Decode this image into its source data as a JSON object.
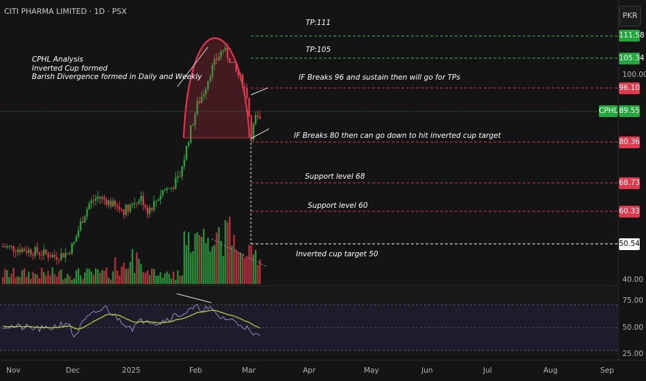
{
  "header": {
    "title": "CITI PHARMA LIMITED · 1D · PSX",
    "currency": "PKR"
  },
  "note": "CPHL Analysis\nInverted Cup formed\nBarish Divergence formed in Daily and Weekly",
  "annotations": {
    "tp111": "TP:111",
    "tp105": "TP:105",
    "breaks96": "IF Breaks 96 and sustain  then will go for TPs",
    "breaks80": "IF Breaks 80 then can go down to hit inverted cup target",
    "support68": "Support level 68",
    "support60": "Support level 60",
    "target50": "Inverted  cup target 50"
  },
  "price_tags": {
    "p111": "111.58",
    "p105": "105.34",
    "p96": "96.10",
    "p89": "89.55",
    "p80": "80.36",
    "p68": "68.73",
    "p60": "60.33",
    "p50": "50.54",
    "symbol": "CPHL"
  },
  "axis": {
    "y100": "100.00",
    "y40": "40.00",
    "rsi75": "75.00",
    "rsi50": "50.00",
    "rsi25": "25.00"
  },
  "xlabels": [
    "Nov",
    "Dec",
    "2025",
    "Feb",
    "Mar",
    "Apr",
    "May",
    "Jun",
    "Jul",
    "Aug",
    "Sep"
  ],
  "colors": {
    "up": "#26a53c",
    "down": "#e0394d",
    "bg": "#141414",
    "cup": "#e8354f",
    "rsi": "#9a8bc6",
    "rsi_ma": "#b5d23f"
  },
  "chart_data": {
    "type": "candlestick",
    "title": "CITI PHARMA LIMITED · 1D · PSX",
    "ylim": [
      40,
      115
    ],
    "levels": [
      111.58,
      105.34,
      96.1,
      89.55,
      80.36,
      68.73,
      60.33,
      50.54
    ],
    "last_close": 89.55,
    "rsi_levels": [
      75,
      50,
      25
    ]
  }
}
